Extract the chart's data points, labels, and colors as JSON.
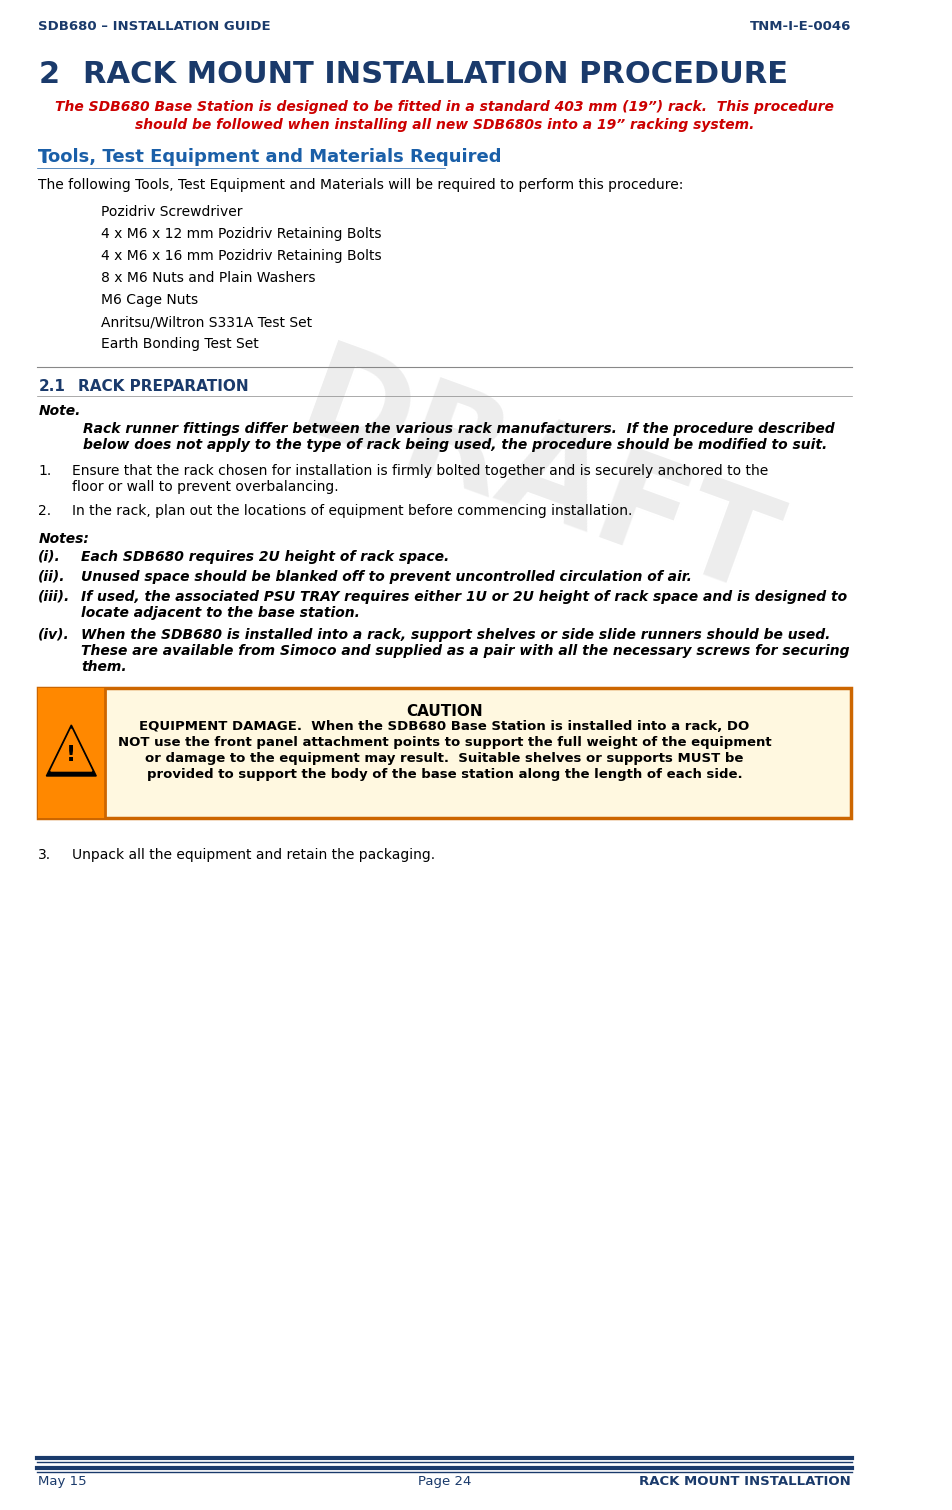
{
  "header_left": "SDB680 – INSTALLATION GUIDE",
  "header_right": "TNM-I-E-0046",
  "header_color": "#1a3a6b",
  "footer_left": "May 15",
  "footer_center": "Page 24",
  "footer_right": "RACK MOUNT INSTALLATION",
  "section_num": "2",
  "section_title": "RACK MOUNT INSTALLATION PROCEDURE",
  "section_title_color": "#1a3a6b",
  "intro_text_red": "The SDB680 Base Station is designed to be fitted in a standard 403 mm (19”) rack.  This procedure should be followed when installing all new SDB680s into a 19” racking system.",
  "intro_text_color": "#cc0000",
  "tools_heading": "Tools, Test Equipment and Materials Required",
  "tools_heading_color": "#1a5fa8",
  "tools_intro": "The following Tools, Test Equipment and Materials will be required to perform this procedure:",
  "tools_list": [
    "Pozidriv Screwdriver",
    "4 x M6 x 12 mm Pozidriv Retaining Bolts",
    "4 x M6 x 16 mm Pozidriv Retaining Bolts",
    "8 x M6 Nuts and Plain Washers",
    "M6 Cage Nuts",
    "Anritsu/Wiltron S331A Test Set",
    "Earth Bonding Test Set"
  ],
  "section2_num": "2.1",
  "section2_title": "Rack Preparation",
  "section2_title_color": "#1a3a6b",
  "note_label": "Note.",
  "note_italic": "Rack runner fittings differ between the various rack manufacturers.  If the procedure described below does not apply to the type of rack being used, the procedure should be modified to suit.",
  "step1_num": "1.",
  "step1_text": "Ensure that the rack chosen for installation is firmly bolted together and is securely anchored to the floor or wall to prevent overbalancing.",
  "step2_num": "2.",
  "step2_text": "In the rack, plan out the locations of equipment before commencing installation.",
  "notes_label": "Notes:",
  "note_i": "(i).\tEach SDB680 requires 2U height of rack space.",
  "note_ii": "(ii).\tUnused space should be blanked off to prevent uncontrolled circulation of air.",
  "note_iii": "(iii).\tIf used, the associated PSU TRAY requires either 1U or 2U height of rack space and is designed to locate adjacent to the base station.",
  "note_iv_line1": "(iv).\tWhen the SDB680 is installed into a rack, support shelves or side slide runners should be used.",
  "note_iv_line2": "\tThese are available from Simoco and supplied as a pair with all the necessary screws for securing them.",
  "caution_title": "CAUTION",
  "caution_text": "EQUIPMENT DAMAGE.  When the SDB680 Base Station is installed into a rack, DO NOT use the front panel attachment points to support the full weight of the equipment or damage to the equipment may result.  Suitable shelves or supports MUST be provided to support the body of the base station along the length of each side.",
  "caution_box_color": "#ffcc00",
  "caution_border_color": "#cc0000",
  "step3_num": "3.",
  "step3_text": "Unpack all the equipment and retain the packaging.",
  "text_color": "#000000",
  "bg_color": "#ffffff",
  "line_color": "#1a3a6b"
}
